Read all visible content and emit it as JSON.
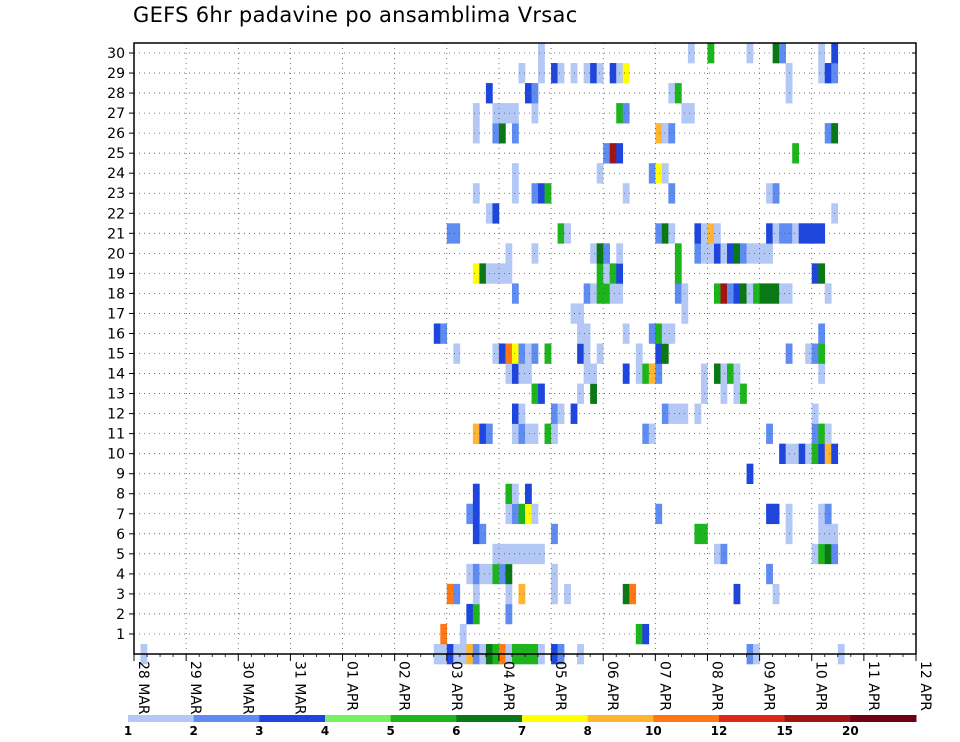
{
  "chart_data": {
    "type": "heatmap",
    "title": "GEFS 6hr padavine po ansamblima Vrsac",
    "x_tick_labels": [
      "28 MAR",
      "29 MAR",
      "30 MAR",
      "31 MAR",
      "01 APR",
      "02 APR",
      "03 APR",
      "04 APR",
      "05 APR",
      "06 APR",
      "07 APR",
      "08 APR",
      "09 APR",
      "10 APR",
      "11 APR",
      "12 APR"
    ],
    "y_tick_labels": [
      "1",
      "2",
      "3",
      "4",
      "5",
      "6",
      "7",
      "8",
      "9",
      "10",
      "11",
      "12",
      "13",
      "14",
      "15",
      "16",
      "17",
      "18",
      "19",
      "20",
      "21",
      "22",
      "23",
      "24",
      "25",
      "26",
      "27",
      "28",
      "29",
      "30"
    ],
    "x_range": [
      "28 MAR 00Z",
      "12 APR 00Z"
    ],
    "y_range": [
      0,
      30
    ],
    "grid": true,
    "legend_position": "bottom",
    "color_scale": {
      "labels": [
        "1",
        "2",
        "3",
        "4",
        "5",
        "6",
        "7",
        "8",
        "10",
        "12",
        "15",
        "20"
      ],
      "colors": [
        "#b4c8f5",
        "#5f8cf0",
        "#1e46dc",
        "#78f064",
        "#1eb41e",
        "#0a7814",
        "#ffff00",
        "#ffb432",
        "#ff7814",
        "#dc2814",
        "#a01414",
        "#700014"
      ]
    },
    "cells": [
      [
        1,
        0,
        1
      ],
      [
        46,
        0,
        1
      ],
      [
        47,
        0,
        1
      ],
      [
        48,
        0,
        3
      ],
      [
        49,
        0,
        1
      ],
      [
        50,
        0,
        1
      ],
      [
        51,
        0,
        8
      ],
      [
        52,
        0,
        2
      ],
      [
        53,
        0,
        1
      ],
      [
        54,
        0,
        6
      ],
      [
        55,
        0,
        5
      ],
      [
        56,
        0,
        9
      ],
      [
        57,
        0,
        1
      ],
      [
        58,
        0,
        5
      ],
      [
        59,
        0,
        5
      ],
      [
        60,
        0,
        5
      ],
      [
        61,
        0,
        5
      ],
      [
        62,
        0,
        1
      ],
      [
        64,
        0,
        3
      ],
      [
        65,
        0,
        2
      ],
      [
        68,
        0,
        1
      ],
      [
        94,
        0,
        2
      ],
      [
        95,
        0,
        1
      ],
      [
        108,
        0,
        1
      ],
      [
        47,
        1,
        9
      ],
      [
        50,
        1,
        1
      ],
      [
        77,
        1,
        5
      ],
      [
        78,
        1,
        3
      ],
      [
        51,
        2,
        3
      ],
      [
        52,
        2,
        5
      ],
      [
        57,
        2,
        2
      ],
      [
        48,
        3,
        9
      ],
      [
        49,
        3,
        2
      ],
      [
        52,
        3,
        1
      ],
      [
        57,
        3,
        1
      ],
      [
        59,
        3,
        8
      ],
      [
        64,
        3,
        1
      ],
      [
        66,
        3,
        1
      ],
      [
        75,
        3,
        6
      ],
      [
        76,
        3,
        9
      ],
      [
        92,
        3,
        3
      ],
      [
        98,
        3,
        1
      ],
      [
        51,
        4,
        1
      ],
      [
        52,
        4,
        2
      ],
      [
        53,
        4,
        1
      ],
      [
        54,
        4,
        1
      ],
      [
        55,
        4,
        5
      ],
      [
        56,
        4,
        2
      ],
      [
        57,
        4,
        6
      ],
      [
        64,
        4,
        1
      ],
      [
        97,
        4,
        2
      ],
      [
        55,
        5,
        1
      ],
      [
        56,
        5,
        1
      ],
      [
        57,
        5,
        1
      ],
      [
        58,
        5,
        1
      ],
      [
        59,
        5,
        1
      ],
      [
        60,
        5,
        1
      ],
      [
        61,
        5,
        1
      ],
      [
        62,
        5,
        1
      ],
      [
        89,
        5,
        1
      ],
      [
        90,
        5,
        2
      ],
      [
        104,
        5,
        1
      ],
      [
        105,
        5,
        5
      ],
      [
        106,
        5,
        6
      ],
      [
        107,
        5,
        2
      ],
      [
        52,
        6,
        3
      ],
      [
        53,
        6,
        2
      ],
      [
        64,
        6,
        2
      ],
      [
        86,
        6,
        5
      ],
      [
        87,
        6,
        5
      ],
      [
        100,
        6,
        1
      ],
      [
        105,
        6,
        1
      ],
      [
        106,
        6,
        1
      ],
      [
        107,
        6,
        1
      ],
      [
        51,
        7,
        2
      ],
      [
        52,
        7,
        3
      ],
      [
        57,
        7,
        1
      ],
      [
        58,
        7,
        2
      ],
      [
        59,
        7,
        5
      ],
      [
        60,
        7,
        7
      ],
      [
        61,
        7,
        1
      ],
      [
        80,
        7,
        2
      ],
      [
        97,
        7,
        3
      ],
      [
        98,
        7,
        3
      ],
      [
        100,
        7,
        1
      ],
      [
        105,
        7,
        1
      ],
      [
        106,
        7,
        2
      ],
      [
        52,
        8,
        3
      ],
      [
        57,
        8,
        5
      ],
      [
        58,
        8,
        1
      ],
      [
        60,
        8,
        3
      ],
      [
        94,
        9,
        3
      ],
      [
        99,
        10,
        3
      ],
      [
        100,
        10,
        1
      ],
      [
        101,
        10,
        1
      ],
      [
        102,
        10,
        3
      ],
      [
        103,
        10,
        1
      ],
      [
        104,
        10,
        5
      ],
      [
        105,
        10,
        3
      ],
      [
        106,
        10,
        8
      ],
      [
        107,
        10,
        3
      ],
      [
        52,
        11,
        8
      ],
      [
        53,
        11,
        3
      ],
      [
        54,
        11,
        2
      ],
      [
        58,
        11,
        1
      ],
      [
        59,
        11,
        2
      ],
      [
        60,
        11,
        1
      ],
      [
        61,
        11,
        1
      ],
      [
        63,
        11,
        5
      ],
      [
        64,
        11,
        1
      ],
      [
        78,
        11,
        2
      ],
      [
        79,
        11,
        1
      ],
      [
        97,
        11,
        2
      ],
      [
        104,
        11,
        2
      ],
      [
        105,
        11,
        5
      ],
      [
        106,
        11,
        1
      ],
      [
        58,
        12,
        3
      ],
      [
        59,
        12,
        1
      ],
      [
        64,
        12,
        2
      ],
      [
        65,
        12,
        1
      ],
      [
        67,
        12,
        3
      ],
      [
        81,
        12,
        2
      ],
      [
        82,
        12,
        1
      ],
      [
        83,
        12,
        1
      ],
      [
        84,
        12,
        1
      ],
      [
        86,
        12,
        1
      ],
      [
        104,
        12,
        1
      ],
      [
        61,
        13,
        5
      ],
      [
        62,
        13,
        3
      ],
      [
        68,
        13,
        1
      ],
      [
        70,
        13,
        6
      ],
      [
        87,
        13,
        1
      ],
      [
        90,
        13,
        1
      ],
      [
        92,
        13,
        1
      ],
      [
        93,
        13,
        5
      ],
      [
        57,
        14,
        1
      ],
      [
        58,
        14,
        3
      ],
      [
        59,
        14,
        1
      ],
      [
        60,
        14,
        1
      ],
      [
        69,
        14,
        1
      ],
      [
        70,
        14,
        1
      ],
      [
        75,
        14,
        3
      ],
      [
        77,
        14,
        1
      ],
      [
        78,
        14,
        5
      ],
      [
        79,
        14,
        8
      ],
      [
        80,
        14,
        2
      ],
      [
        87,
        14,
        1
      ],
      [
        89,
        14,
        6
      ],
      [
        90,
        14,
        1
      ],
      [
        91,
        14,
        5
      ],
      [
        92,
        14,
        1
      ],
      [
        105,
        14,
        1
      ],
      [
        49,
        15,
        1
      ],
      [
        55,
        15,
        1
      ],
      [
        56,
        15,
        3
      ],
      [
        57,
        15,
        9
      ],
      [
        58,
        15,
        7
      ],
      [
        59,
        15,
        2
      ],
      [
        60,
        15,
        1
      ],
      [
        61,
        15,
        2
      ],
      [
        63,
        15,
        5
      ],
      [
        68,
        15,
        3
      ],
      [
        69,
        15,
        1
      ],
      [
        71,
        15,
        1
      ],
      [
        77,
        15,
        1
      ],
      [
        80,
        15,
        3
      ],
      [
        81,
        15,
        6
      ],
      [
        100,
        15,
        2
      ],
      [
        103,
        15,
        1
      ],
      [
        104,
        15,
        2
      ],
      [
        105,
        15,
        5
      ],
      [
        46,
        16,
        3
      ],
      [
        47,
        16,
        2
      ],
      [
        68,
        16,
        1
      ],
      [
        69,
        16,
        1
      ],
      [
        75,
        16,
        1
      ],
      [
        79,
        16,
        2
      ],
      [
        80,
        16,
        5
      ],
      [
        81,
        16,
        1
      ],
      [
        82,
        16,
        1
      ],
      [
        105,
        16,
        2
      ],
      [
        67,
        17,
        1
      ],
      [
        68,
        17,
        1
      ],
      [
        84,
        17,
        1
      ],
      [
        58,
        18,
        2
      ],
      [
        69,
        18,
        2
      ],
      [
        70,
        18,
        1
      ],
      [
        71,
        18,
        5
      ],
      [
        72,
        18,
        5
      ],
      [
        73,
        18,
        1
      ],
      [
        74,
        18,
        1
      ],
      [
        83,
        18,
        2
      ],
      [
        84,
        18,
        1
      ],
      [
        89,
        18,
        5
      ],
      [
        90,
        18,
        11
      ],
      [
        91,
        18,
        2
      ],
      [
        92,
        18,
        3
      ],
      [
        93,
        18,
        6
      ],
      [
        94,
        18,
        1
      ],
      [
        95,
        18,
        5
      ],
      [
        96,
        18,
        6
      ],
      [
        97,
        18,
        6
      ],
      [
        98,
        18,
        6
      ],
      [
        99,
        18,
        1
      ],
      [
        100,
        18,
        1
      ],
      [
        106,
        18,
        1
      ],
      [
        52,
        19,
        7
      ],
      [
        53,
        19,
        6
      ],
      [
        54,
        19,
        1
      ],
      [
        55,
        19,
        1
      ],
      [
        56,
        19,
        1
      ],
      [
        57,
        19,
        1
      ],
      [
        71,
        19,
        5
      ],
      [
        72,
        19,
        1
      ],
      [
        73,
        19,
        5
      ],
      [
        74,
        19,
        3
      ],
      [
        83,
        19,
        5
      ],
      [
        104,
        19,
        3
      ],
      [
        105,
        19,
        6
      ],
      [
        57,
        20,
        1
      ],
      [
        61,
        20,
        1
      ],
      [
        70,
        20,
        1
      ],
      [
        71,
        20,
        6
      ],
      [
        72,
        20,
        2
      ],
      [
        74,
        20,
        1
      ],
      [
        83,
        20,
        5
      ],
      [
        86,
        20,
        2
      ],
      [
        87,
        20,
        1
      ],
      [
        88,
        20,
        1
      ],
      [
        89,
        20,
        3
      ],
      [
        90,
        20,
        1
      ],
      [
        91,
        20,
        3
      ],
      [
        92,
        20,
        6
      ],
      [
        93,
        20,
        2
      ],
      [
        94,
        20,
        1
      ],
      [
        95,
        20,
        1
      ],
      [
        96,
        20,
        1
      ],
      [
        97,
        20,
        1
      ],
      [
        48,
        21,
        2
      ],
      [
        49,
        21,
        2
      ],
      [
        65,
        21,
        5
      ],
      [
        66,
        21,
        1
      ],
      [
        80,
        21,
        2
      ],
      [
        81,
        21,
        6
      ],
      [
        82,
        21,
        1
      ],
      [
        86,
        21,
        3
      ],
      [
        87,
        21,
        1
      ],
      [
        88,
        21,
        8
      ],
      [
        89,
        21,
        1
      ],
      [
        97,
        21,
        3
      ],
      [
        98,
        21,
        1
      ],
      [
        99,
        21,
        2
      ],
      [
        100,
        21,
        2
      ],
      [
        101,
        21,
        1
      ],
      [
        102,
        21,
        3
      ],
      [
        103,
        21,
        3
      ],
      [
        104,
        21,
        3
      ],
      [
        105,
        21,
        3
      ],
      [
        54,
        22,
        1
      ],
      [
        55,
        22,
        3
      ],
      [
        107,
        22,
        1
      ],
      [
        52,
        23,
        1
      ],
      [
        58,
        23,
        1
      ],
      [
        61,
        23,
        2
      ],
      [
        62,
        23,
        3
      ],
      [
        63,
        23,
        5
      ],
      [
        75,
        23,
        1
      ],
      [
        82,
        23,
        2
      ],
      [
        97,
        23,
        1
      ],
      [
        98,
        23,
        2
      ],
      [
        58,
        24,
        1
      ],
      [
        71,
        24,
        1
      ],
      [
        79,
        24,
        2
      ],
      [
        80,
        24,
        7
      ],
      [
        81,
        24,
        1
      ],
      [
        72,
        25,
        2
      ],
      [
        73,
        25,
        11
      ],
      [
        74,
        25,
        3
      ],
      [
        101,
        25,
        5
      ],
      [
        52,
        26,
        1
      ],
      [
        55,
        26,
        2
      ],
      [
        56,
        26,
        6
      ],
      [
        58,
        26,
        2
      ],
      [
        80,
        26,
        8
      ],
      [
        81,
        26,
        1
      ],
      [
        82,
        26,
        2
      ],
      [
        106,
        26,
        2
      ],
      [
        107,
        26,
        6
      ],
      [
        52,
        27,
        1
      ],
      [
        55,
        27,
        1
      ],
      [
        56,
        27,
        1
      ],
      [
        57,
        27,
        1
      ],
      [
        58,
        27,
        1
      ],
      [
        61,
        27,
        1
      ],
      [
        74,
        27,
        5
      ],
      [
        75,
        27,
        2
      ],
      [
        84,
        27,
        1
      ],
      [
        85,
        27,
        1
      ],
      [
        54,
        28,
        3
      ],
      [
        60,
        28,
        3
      ],
      [
        61,
        28,
        2
      ],
      [
        82,
        28,
        1
      ],
      [
        83,
        28,
        5
      ],
      [
        100,
        28,
        1
      ],
      [
        59,
        29,
        1
      ],
      [
        62,
        29,
        1
      ],
      [
        64,
        29,
        3
      ],
      [
        65,
        29,
        1
      ],
      [
        67,
        29,
        1
      ],
      [
        69,
        29,
        1
      ],
      [
        70,
        29,
        3
      ],
      [
        71,
        29,
        1
      ],
      [
        73,
        29,
        3
      ],
      [
        74,
        29,
        1
      ],
      [
        75,
        29,
        7
      ],
      [
        100,
        29,
        1
      ],
      [
        105,
        29,
        1
      ],
      [
        106,
        29,
        3
      ],
      [
        107,
        29,
        2
      ],
      [
        62,
        30,
        1
      ],
      [
        85,
        30,
        1
      ],
      [
        88,
        30,
        5
      ],
      [
        94,
        30,
        1
      ],
      [
        98,
        30,
        6
      ],
      [
        99,
        30,
        2
      ],
      [
        105,
        30,
        1
      ],
      [
        107,
        30,
        3
      ]
    ]
  }
}
